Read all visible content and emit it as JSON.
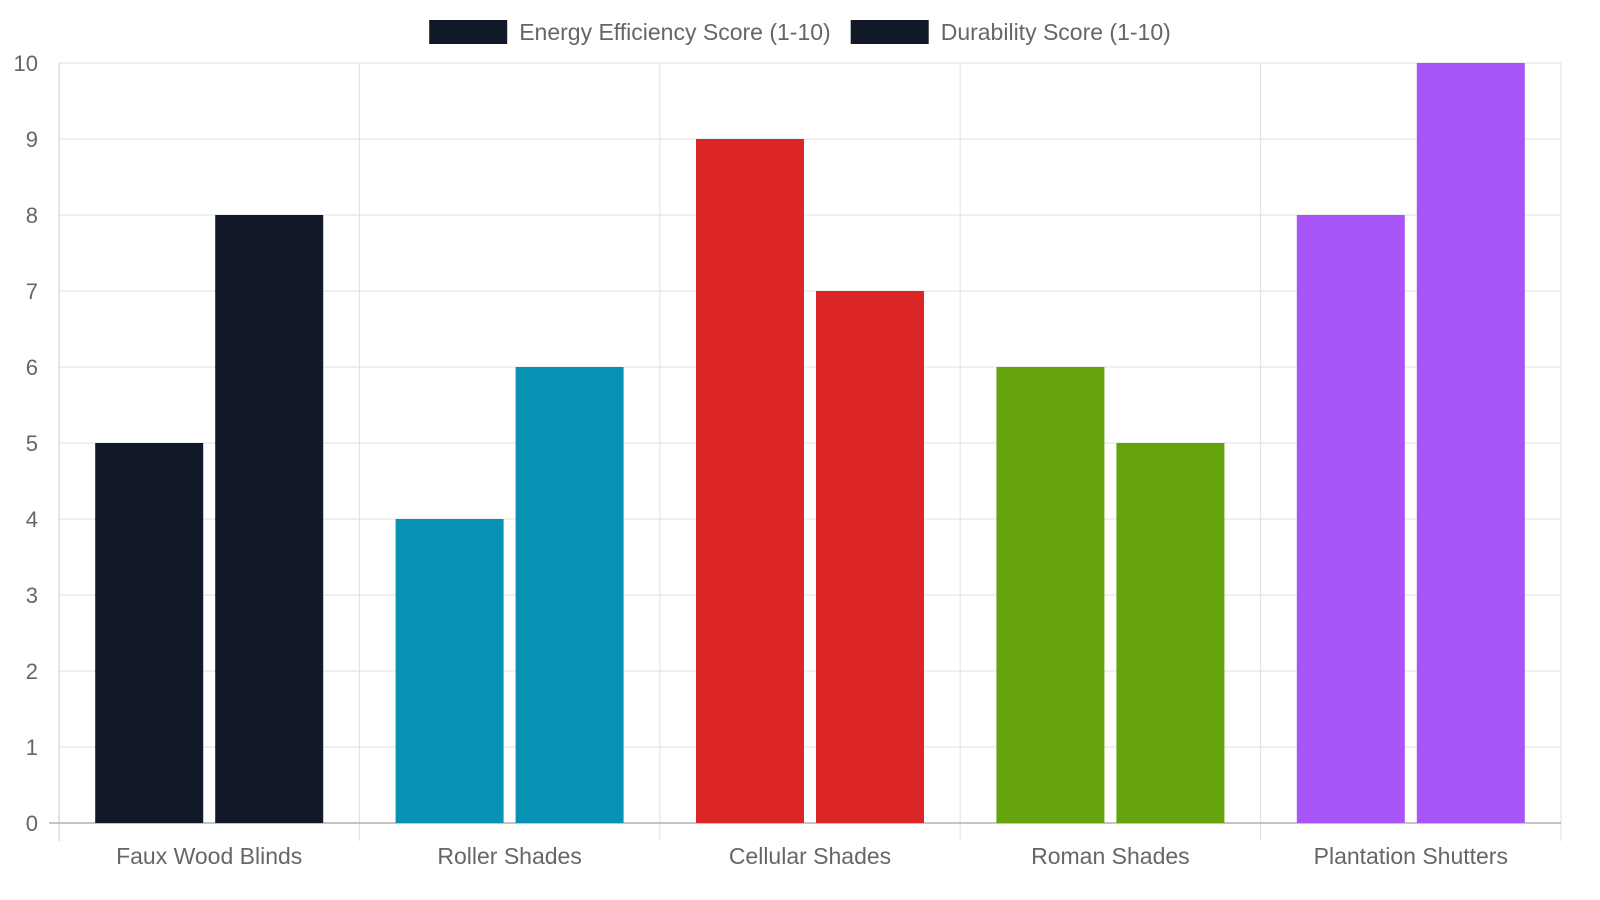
{
  "chart_data": {
    "type": "bar",
    "categories": [
      "Faux Wood Blinds",
      "Roller Shades",
      "Cellular Shades",
      "Roman Shades",
      "Plantation Shutters"
    ],
    "series": [
      {
        "name": "Energy Efficiency Score (1-10)",
        "values": [
          5,
          4,
          9,
          6,
          8
        ]
      },
      {
        "name": "Durability Score (1-10)",
        "values": [
          8,
          6,
          7,
          5,
          10
        ]
      }
    ],
    "category_colors": [
      "#111827",
      "#0891b2",
      "#dc2626",
      "#65a30d",
      "#a855f7"
    ],
    "legend_colors": [
      "#111827",
      "#111827"
    ],
    "ylim": [
      0,
      10
    ],
    "yticks": [
      0,
      1,
      2,
      3,
      4,
      5,
      6,
      7,
      8,
      9,
      10
    ],
    "grid": true,
    "legend_position": "top-center",
    "title": "",
    "xlabel": "",
    "ylabel": ""
  }
}
